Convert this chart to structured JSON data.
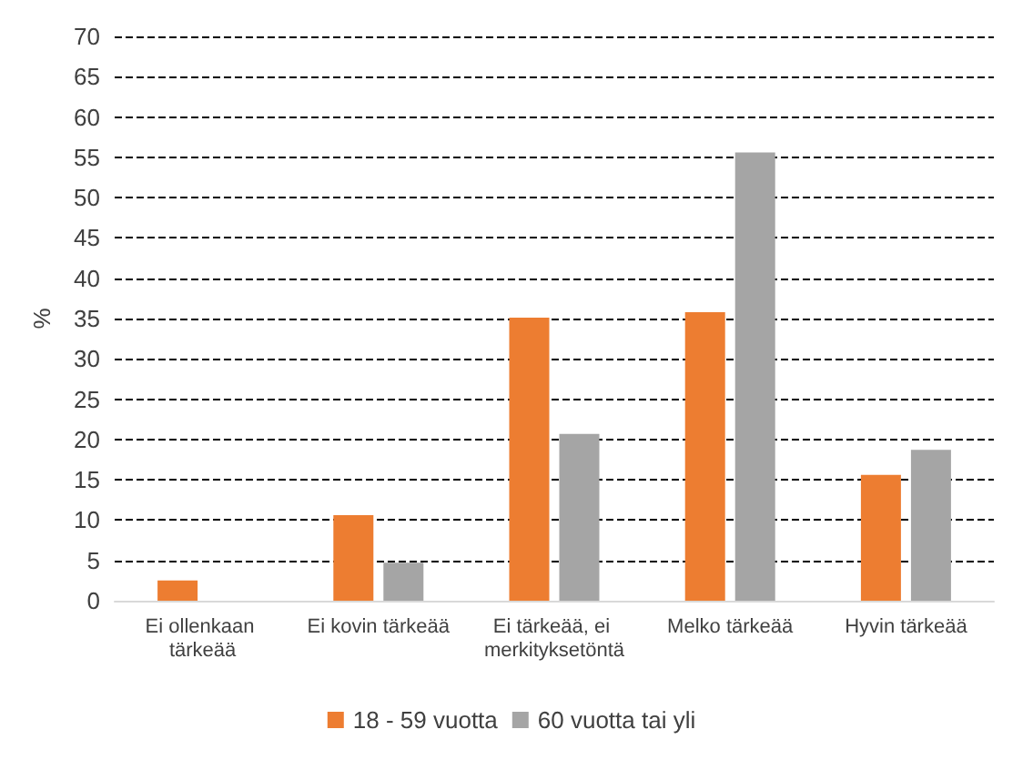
{
  "chart_data": {
    "type": "bar",
    "ylabel": "%",
    "categories": [
      "Ei ollenkaan tärkeää",
      "Ei kovin tärkeää",
      "Ei tärkeää, ei merkityksetöntä",
      "Melko tärkeää",
      "Hyvin tärkeää"
    ],
    "series": [
      {
        "name": "18 - 59 vuotta",
        "color": "#ed7d31",
        "values": [
          2.5,
          10.6,
          35.1,
          35.8,
          15.6
        ]
      },
      {
        "name": "60 vuotta tai yli",
        "color": "#a5a5a5",
        "values": [
          0,
          4.7,
          20.7,
          55.6,
          18.7
        ]
      }
    ],
    "ylim": [
      0,
      70
    ],
    "yticks": [
      0,
      5,
      10,
      15,
      20,
      25,
      30,
      35,
      40,
      45,
      50,
      55,
      60,
      65,
      70
    ],
    "grid": "y",
    "legend": "bottom"
  }
}
